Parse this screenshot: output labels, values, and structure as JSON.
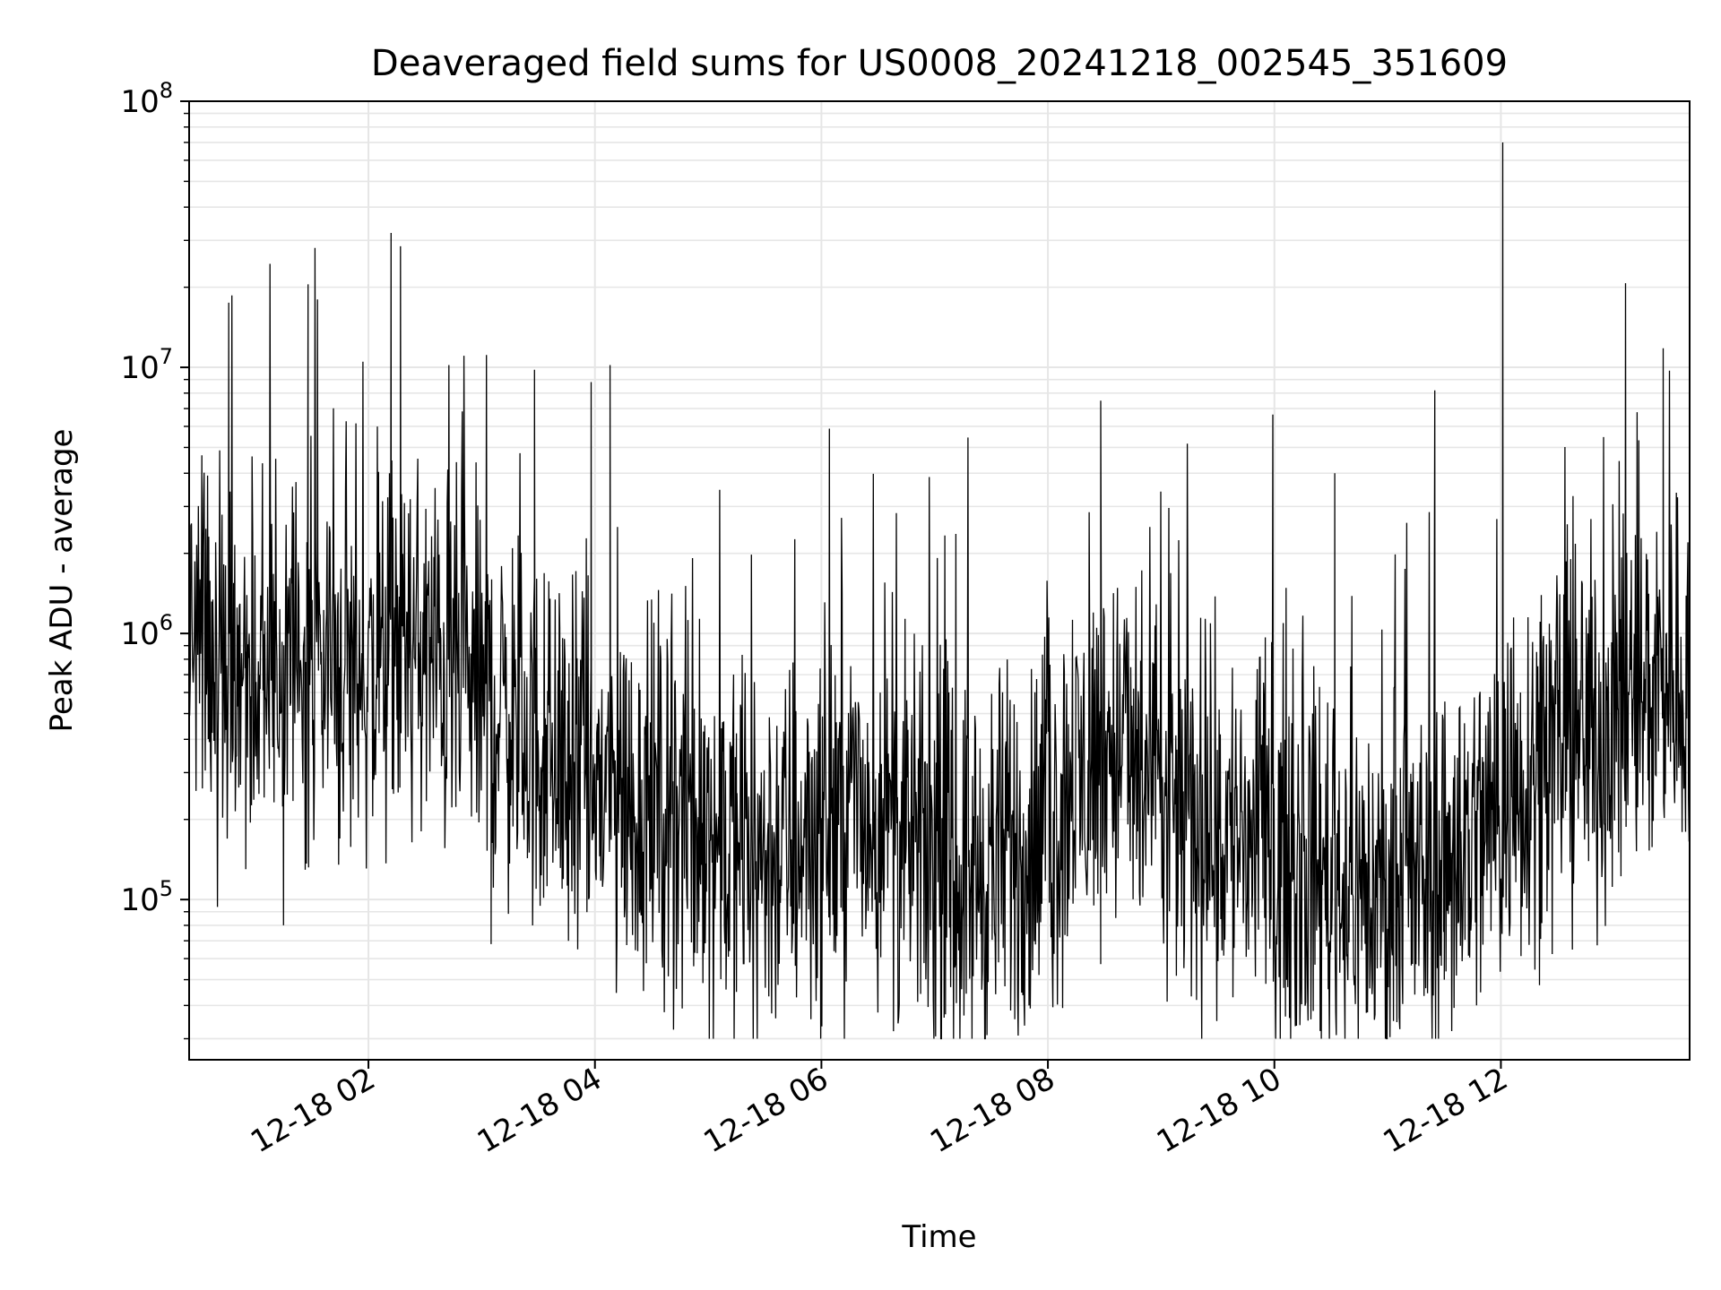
{
  "chart_data": {
    "type": "line",
    "title": "Deaveraged field sums for US0008_20241218_002545_351609",
    "xlabel": "Time",
    "ylabel": "Peak ADU - average",
    "yscale": "log",
    "ylim": [
      25000,
      100000000
    ],
    "xlim": [
      "2024-12-18 00:25",
      "2024-12-18 13:40"
    ],
    "grid": true,
    "x_tick_labels": [
      "12-18 02",
      "12-18 04",
      "12-18 06",
      "12-18 08",
      "12-18 10",
      "12-18 12"
    ],
    "y_tick_labels": [
      {
        "base": "10",
        "exp": "5",
        "value": 100000
      },
      {
        "base": "10",
        "exp": "6",
        "value": 1000000
      },
      {
        "base": "10",
        "exp": "7",
        "value": 10000000
      },
      {
        "base": "10",
        "exp": "8",
        "value": 100000000
      }
    ],
    "line_color": "#000000",
    "series": [
      {
        "x": [
          "2024-12-18 00:25",
          "2024-12-18 00:35",
          "2024-12-18 00:45",
          "2024-12-18 00:55",
          "2024-12-18 01:05",
          "2024-12-18 01:15",
          "2024-12-18 01:25",
          "2024-12-18 01:35",
          "2024-12-18 01:45",
          "2024-12-18 01:55",
          "2024-12-18 02:05",
          "2024-12-18 02:15",
          "2024-12-18 02:25",
          "2024-12-18 02:35",
          "2024-12-18 02:45",
          "2024-12-18 02:55",
          "2024-12-18 03:05",
          "2024-12-18 03:15",
          "2024-12-18 03:25",
          "2024-12-18 03:35",
          "2024-12-18 03:45",
          "2024-12-18 03:55",
          "2024-12-18 04:05",
          "2024-12-18 04:15",
          "2024-12-18 04:25",
          "2024-12-18 04:35",
          "2024-12-18 04:45",
          "2024-12-18 04:55",
          "2024-12-18 05:05",
          "2024-12-18 05:15",
          "2024-12-18 05:25",
          "2024-12-18 05:35",
          "2024-12-18 05:45",
          "2024-12-18 05:55",
          "2024-12-18 06:05",
          "2024-12-18 06:15",
          "2024-12-18 06:25",
          "2024-12-18 06:35",
          "2024-12-18 06:45",
          "2024-12-18 06:55",
          "2024-12-18 07:05",
          "2024-12-18 07:15",
          "2024-12-18 07:25",
          "2024-12-18 07:35",
          "2024-12-18 07:45",
          "2024-12-18 07:55",
          "2024-12-18 08:05",
          "2024-12-18 08:15",
          "2024-12-18 08:25",
          "2024-12-18 08:35",
          "2024-12-18 08:45",
          "2024-12-18 08:55",
          "2024-12-18 09:05",
          "2024-12-18 09:15",
          "2024-12-18 09:25",
          "2024-12-18 09:35",
          "2024-12-18 09:45",
          "2024-12-18 09:55",
          "2024-12-18 10:05",
          "2024-12-18 10:15",
          "2024-12-18 10:25",
          "2024-12-18 10:35",
          "2024-12-18 10:45",
          "2024-12-18 10:55",
          "2024-12-18 11:05",
          "2024-12-18 11:15",
          "2024-12-18 11:25",
          "2024-12-18 11:35",
          "2024-12-18 11:45",
          "2024-12-18 11:55",
          "2024-12-18 12:05",
          "2024-12-18 12:15",
          "2024-12-18 12:25",
          "2024-12-18 12:35",
          "2024-12-18 12:45",
          "2024-12-18 12:55",
          "2024-12-18 13:05",
          "2024-12-18 13:15",
          "2024-12-18 13:25",
          "2024-12-18 13:35"
        ],
        "y": [
          1200000,
          850000,
          700000,
          650000,
          600000,
          700000,
          750000,
          800000,
          750000,
          700000,
          700000,
          900000,
          850000,
          800000,
          700000,
          650000,
          550000,
          500000,
          400000,
          330000,
          300000,
          280000,
          250000,
          230000,
          220000,
          230000,
          210000,
          190000,
          170000,
          150000,
          140000,
          150000,
          160000,
          180000,
          200000,
          210000,
          200000,
          180000,
          160000,
          150000,
          130000,
          120000,
          130000,
          140000,
          150000,
          170000,
          200000,
          260000,
          350000,
          400000,
          320000,
          250000,
          210000,
          200000,
          190000,
          180000,
          170000,
          160000,
          150000,
          140000,
          130000,
          120000,
          110000,
          100000,
          100000,
          110000,
          130000,
          150000,
          170000,
          200000,
          250000,
          320000,
          380000,
          420000,
          420000,
          450000,
          500000,
          600000,
          700000,
          700000
        ],
        "peaks": [
          {
            "x": "2024-12-18 00:46",
            "y": 17500000
          },
          {
            "x": "2024-12-18 01:28",
            "y": 20500000
          },
          {
            "x": "2024-12-18 01:33",
            "y": 18000000
          },
          {
            "x": "2024-12-18 02:12",
            "y": 32000000
          },
          {
            "x": "2024-12-18 02:17",
            "y": 28500000
          },
          {
            "x": "2024-12-18 03:28",
            "y": 9800000
          },
          {
            "x": "2024-12-18 03:58",
            "y": 8800000
          },
          {
            "x": "2024-12-18 04:08",
            "y": 10200000
          },
          {
            "x": "2024-12-18 08:28",
            "y": 7500000
          },
          {
            "x": "2024-12-18 10:32",
            "y": 4000000
          },
          {
            "x": "2024-12-18 11:25",
            "y": 8200000
          },
          {
            "x": "2024-12-18 12:01",
            "y": 70000000
          },
          {
            "x": "2024-12-18 13:26",
            "y": 11800000
          }
        ],
        "dips": [
          {
            "x": "2024-12-18 00:55",
            "y": 130000
          },
          {
            "x": "2024-12-18 01:15",
            "y": 80000
          },
          {
            "x": "2024-12-18 03:05",
            "y": 68000
          },
          {
            "x": "2024-12-18 05:15",
            "y": 45000
          },
          {
            "x": "2024-12-18 07:05",
            "y": 36000
          },
          {
            "x": "2024-12-18 07:50",
            "y": 40000
          },
          {
            "x": "2024-12-18 10:52",
            "y": 50000
          },
          {
            "x": "2024-12-18 11:30",
            "y": 50000
          }
        ]
      }
    ]
  }
}
